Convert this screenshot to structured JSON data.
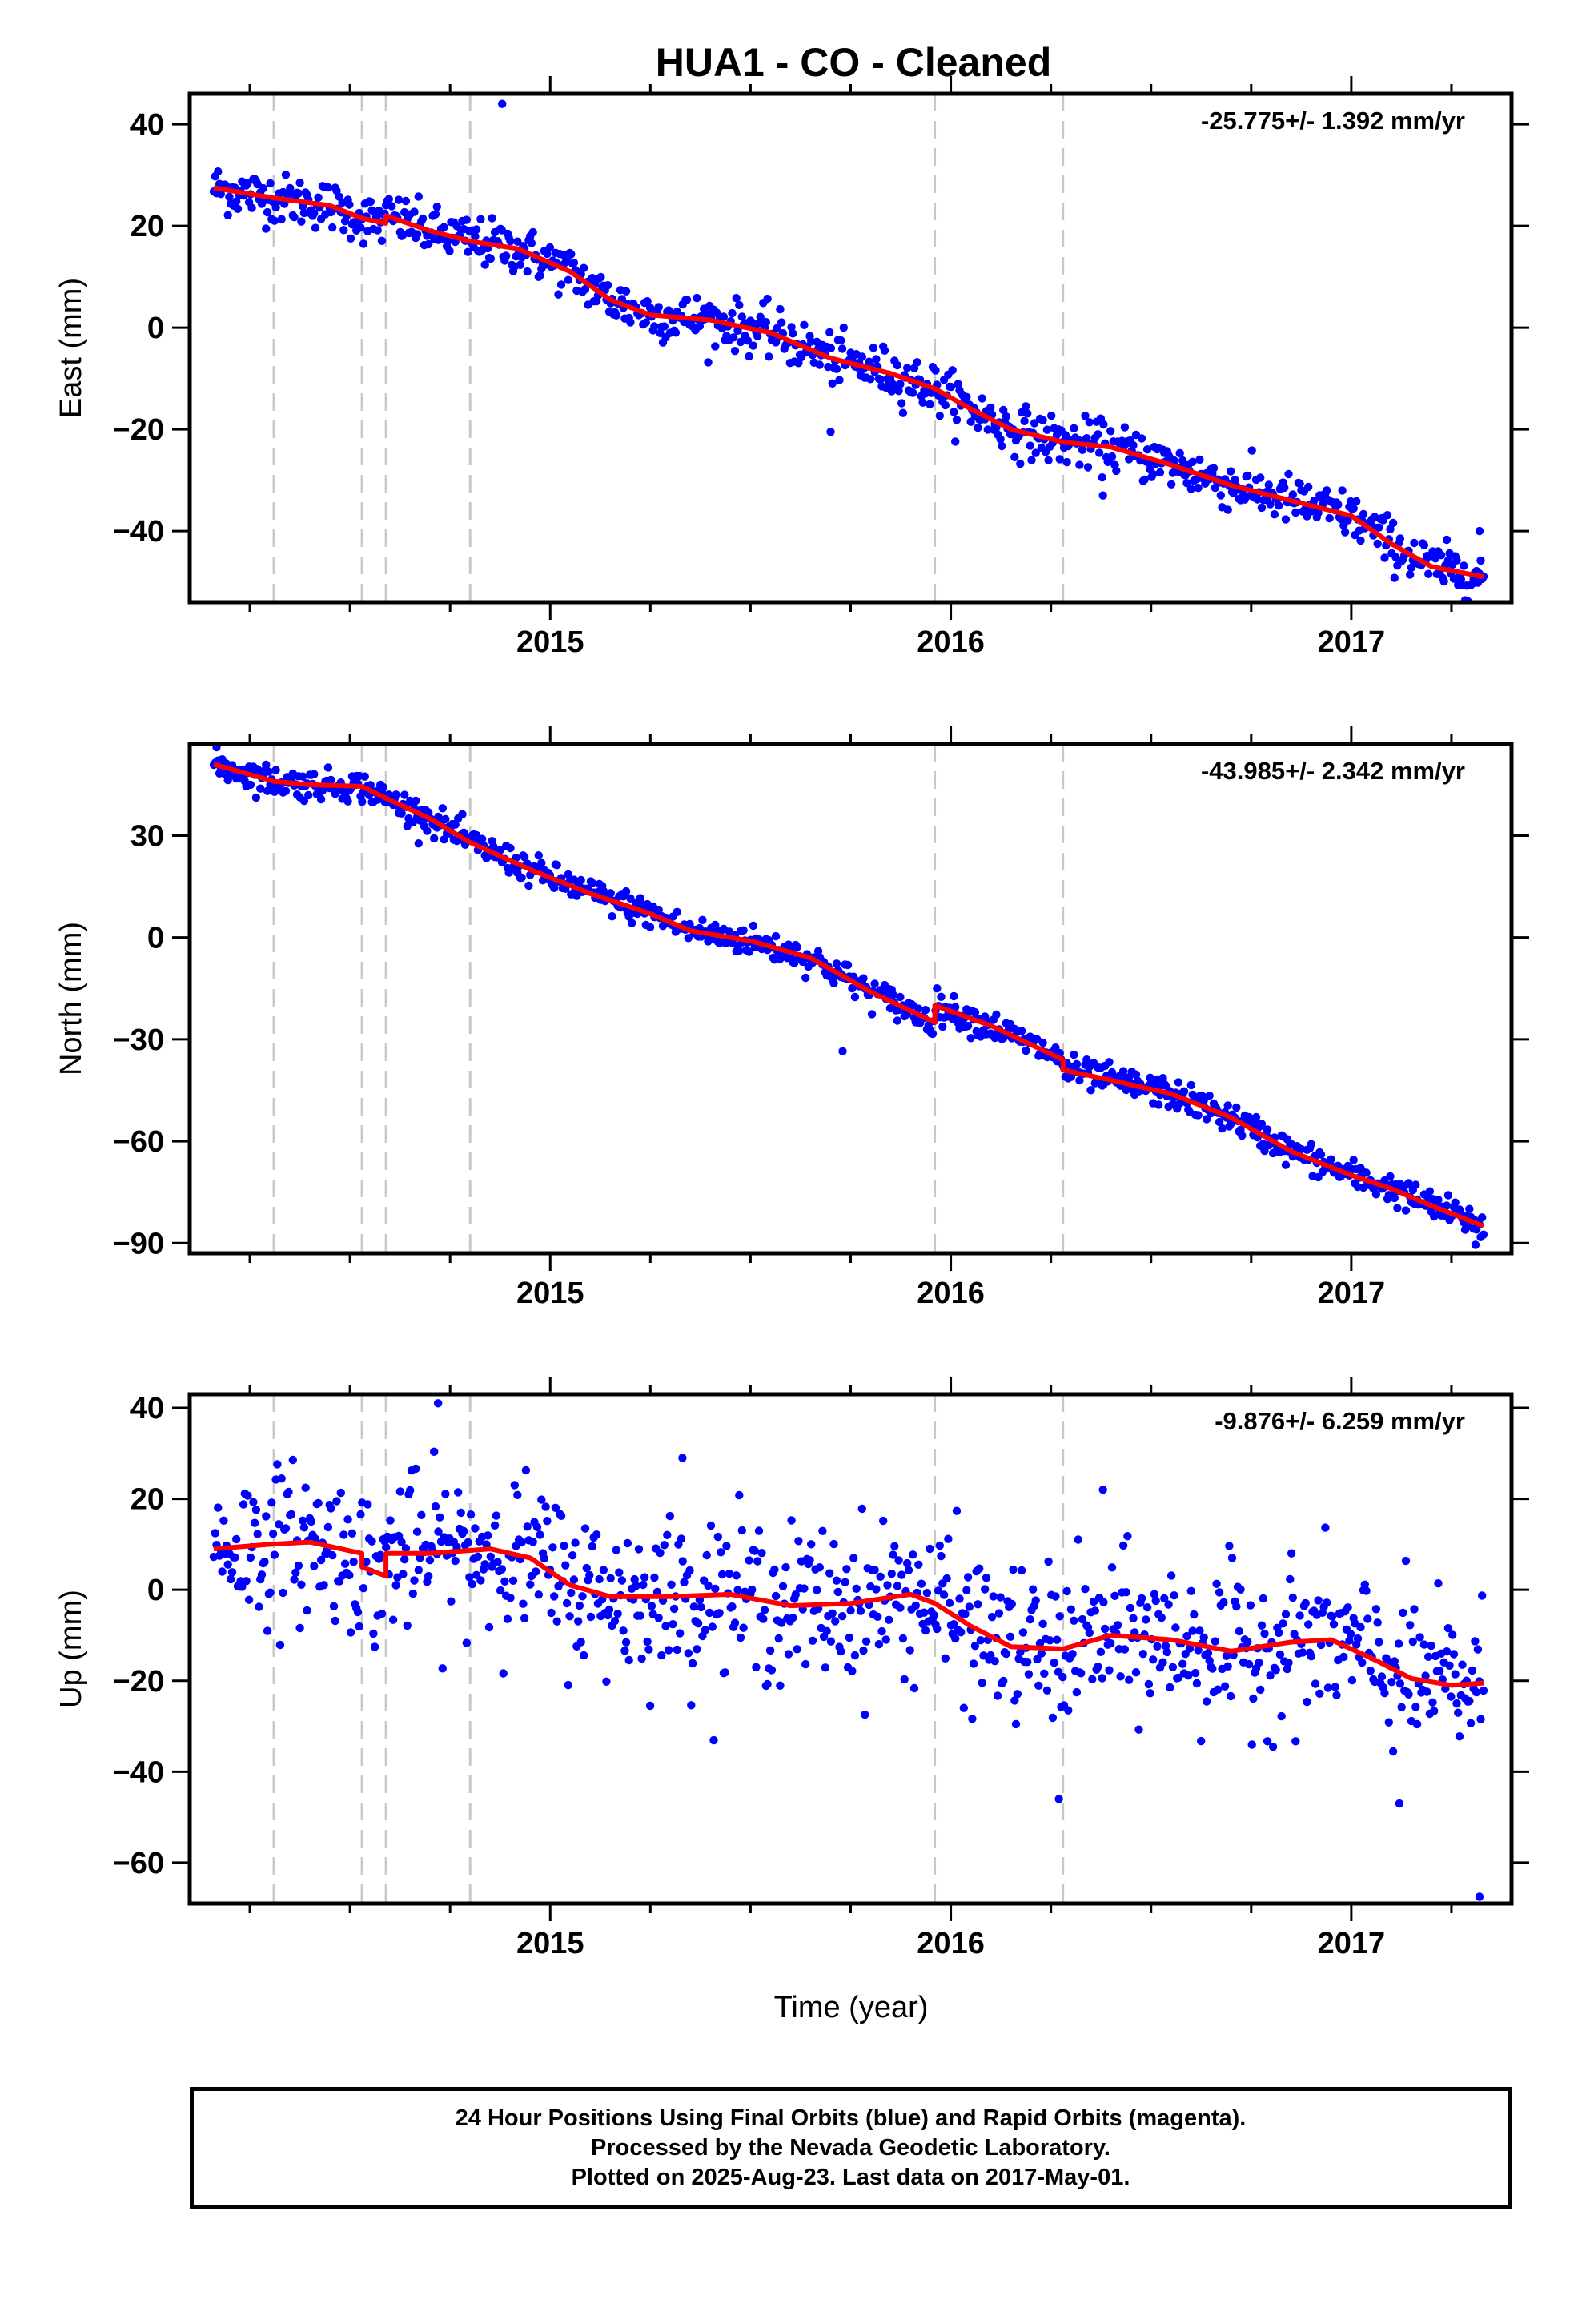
{
  "title": "HUA1  - CO - Cleaned",
  "xlabel": "Time (year)",
  "colors": {
    "points": "#0000ff",
    "model": "#ff0000",
    "breaks": "#c8c8c8",
    "axis": "#000000"
  },
  "footer": [
    "24 Hour Positions Using Final Orbits (blue) and Rapid Orbits (magenta).",
    "Processed by the Nevada Geodetic Laboratory.",
    "Plotted on 2025-Aug-23. Last data on 2017-May-01."
  ],
  "chart_data": [
    {
      "type": "scatter",
      "ylabel": "East (mm)",
      "rate_label": "-25.775+/- 1.392 mm/yr",
      "xlim": [
        2014.1,
        2017.4
      ],
      "ylim": [
        -54,
        46
      ],
      "xticks": [
        2015,
        2016,
        2017
      ],
      "yticks": [
        40,
        20,
        0,
        -20,
        -40
      ],
      "breaks": [
        2014.31,
        2014.53,
        2014.59,
        2014.8,
        2015.96,
        2016.28
      ],
      "trend": {
        "x": [
          2014.16,
          2014.31,
          2014.45,
          2014.53,
          2014.59,
          2014.59,
          2014.7,
          2014.8,
          2014.92,
          2015.05,
          2015.15,
          2015.25,
          2015.4,
          2015.55,
          2015.7,
          2015.85,
          2015.96,
          2016.05,
          2016.15,
          2016.28,
          2016.4,
          2016.55,
          2016.7,
          2016.85,
          2017.0,
          2017.1,
          2017.2,
          2017.33
        ],
        "y": [
          27.5,
          25.5,
          24.0,
          21.5,
          20.5,
          22.0,
          19.0,
          17.0,
          15.5,
          11.0,
          5.5,
          2.5,
          1.5,
          -1.0,
          -6.0,
          -9.0,
          -12.0,
          -16.0,
          -20.0,
          -22.5,
          -23.5,
          -27.0,
          -31.0,
          -34.0,
          -37.0,
          -42.5,
          -47.0,
          -49.0
        ]
      },
      "spread": 2.4,
      "outliers": {
        "x": [
          2014.88,
          2015.7,
          2016.38,
          2017.32
        ],
        "y": [
          44.0,
          -20.5,
          -33.0,
          -40.0
        ]
      }
    },
    {
      "type": "scatter",
      "ylabel": "North (mm)",
      "rate_label": "-43.985+/- 2.342 mm/yr",
      "xlim": [
        2014.1,
        2017.4
      ],
      "ylim": [
        -93,
        57
      ],
      "xticks": [
        2015,
        2016,
        2017
      ],
      "yticks": [
        30,
        0,
        -30,
        -60,
        -90
      ],
      "breaks": [
        2014.31,
        2014.53,
        2014.59,
        2014.8,
        2015.96,
        2016.28
      ],
      "trend": {
        "x": [
          2014.16,
          2014.31,
          2014.4,
          2014.53,
          2014.59,
          2014.7,
          2014.8,
          2014.95,
          2015.1,
          2015.25,
          2015.35,
          2015.5,
          2015.65,
          2015.8,
          2015.96,
          2015.96,
          2016.1,
          2016.28,
          2016.28,
          2016.4,
          2016.55,
          2016.7,
          2016.85,
          2017.0,
          2017.1,
          2017.2,
          2017.33
        ],
        "y": [
          51.0,
          46.0,
          45.0,
          44.5,
          41.0,
          35.0,
          28.0,
          20.0,
          13.0,
          7.0,
          2.0,
          -1.0,
          -6.0,
          -16.0,
          -25.0,
          -20.0,
          -26.0,
          -36.0,
          -39.0,
          -42.0,
          -46.0,
          -53.0,
          -63.0,
          -70.0,
          -74.0,
          -79.0,
          -85.0
        ]
      },
      "spread": 2.2,
      "outliers": {
        "x": [
          2015.73,
          2017.31
        ],
        "y": [
          -33.5,
          -90.5
        ]
      }
    },
    {
      "type": "scatter",
      "ylabel": "Up (mm)",
      "rate_label": "-9.876+/- 6.259 mm/yr",
      "xlim": [
        2014.1,
        2017.4
      ],
      "ylim": [
        -69,
        43
      ],
      "xticks": [
        2015,
        2016,
        2017
      ],
      "yticks": [
        40,
        20,
        0,
        -20,
        -40,
        -60
      ],
      "breaks": [
        2014.31,
        2014.53,
        2014.59,
        2014.8,
        2015.96,
        2016.28
      ],
      "trend": {
        "x": [
          2014.16,
          2014.3,
          2014.4,
          2014.53,
          2014.53,
          2014.59,
          2014.59,
          2014.7,
          2014.85,
          2014.95,
          2015.05,
          2015.15,
          2015.3,
          2015.45,
          2015.6,
          2015.75,
          2015.9,
          2015.96,
          2016.05,
          2016.15,
          2016.28,
          2016.4,
          2016.55,
          2016.7,
          2016.85,
          2016.95,
          2017.05,
          2017.15,
          2017.25,
          2017.33
        ],
        "y": [
          9.0,
          10.0,
          10.5,
          8.0,
          5.0,
          3.0,
          8.0,
          8.0,
          9.0,
          7.0,
          1.0,
          -1.5,
          -1.5,
          -1.0,
          -3.5,
          -3.0,
          -1.0,
          -3.0,
          -8.0,
          -12.5,
          -13.0,
          -10.0,
          -11.0,
          -13.5,
          -11.5,
          -11.0,
          -15.0,
          -19.5,
          -21.0,
          -20.5
        ]
      },
      "spread": 8.5,
      "outliers": {
        "x": [
          2014.72,
          2015.33,
          2016.27,
          2016.38,
          2017.12,
          2017.32
        ],
        "y": [
          41.0,
          29.0,
          -46.0,
          22.0,
          -47.0,
          -67.5
        ]
      }
    }
  ]
}
